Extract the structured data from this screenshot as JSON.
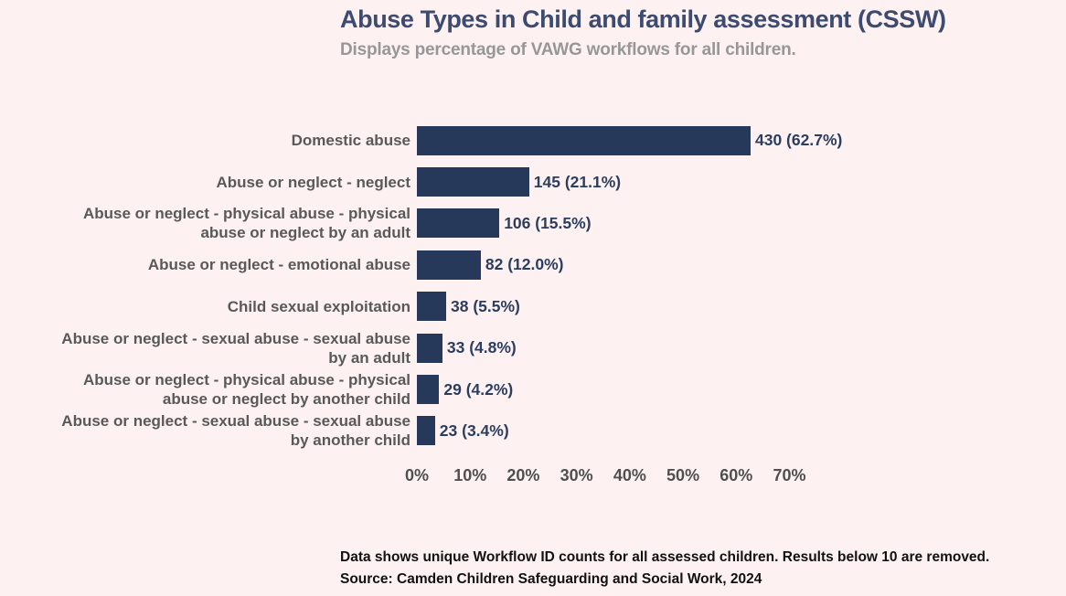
{
  "page": {
    "background_color": "#fdf2f1"
  },
  "header": {
    "title": "Abuse Types in Child and family assessment (CSSW)",
    "subtitle": "Displays percentage of VAWG workflows for all children."
  },
  "chart_data": {
    "type": "bar",
    "orientation": "horizontal",
    "title": "Abuse Types in Child and family assessment (CSSW)",
    "subtitle": "Displays percentage of VAWG workflows for all children.",
    "categories": [
      "Domestic abuse",
      "Abuse or neglect - neglect",
      "Abuse or neglect - physical abuse - physical abuse or neglect by an adult",
      "Abuse or neglect - emotional abuse",
      "Child sexual exploitation",
      "Abuse or neglect - sexual abuse - sexual abuse by an adult",
      "Abuse or neglect - physical abuse - physical abuse or neglect by another child",
      "Abuse or neglect - sexual abuse - sexual abuse by another child"
    ],
    "values": [
      430,
      145,
      106,
      82,
      38,
      33,
      29,
      23
    ],
    "percents": [
      62.7,
      21.1,
      15.5,
      12.0,
      5.5,
      4.8,
      4.2,
      3.4
    ],
    "rows": [
      {
        "label_lines": [
          "Domestic abuse"
        ],
        "count": 430,
        "percent": 62.7,
        "value_label": "430 (62.7%)"
      },
      {
        "label_lines": [
          "Abuse or neglect - neglect"
        ],
        "count": 145,
        "percent": 21.1,
        "value_label": "145 (21.1%)"
      },
      {
        "label_lines": [
          "Abuse or neglect - physical abuse - physical",
          "abuse or neglect by an adult"
        ],
        "count": 106,
        "percent": 15.5,
        "value_label": "106 (15.5%)"
      },
      {
        "label_lines": [
          "Abuse or neglect - emotional abuse"
        ],
        "count": 82,
        "percent": 12.0,
        "value_label": "82 (12.0%)"
      },
      {
        "label_lines": [
          "Child sexual exploitation"
        ],
        "count": 38,
        "percent": 5.5,
        "value_label": "38 (5.5%)"
      },
      {
        "label_lines": [
          "Abuse or neglect - sexual abuse - sexual abuse",
          "by an adult"
        ],
        "count": 33,
        "percent": 4.8,
        "value_label": "33 (4.8%)"
      },
      {
        "label_lines": [
          "Abuse or neglect - physical abuse - physical",
          "abuse or neglect by another child"
        ],
        "count": 29,
        "percent": 4.2,
        "value_label": "29 (4.2%)"
      },
      {
        "label_lines": [
          "Abuse or neglect - sexual abuse - sexual abuse",
          "by another child"
        ],
        "count": 23,
        "percent": 3.4,
        "value_label": "23 (3.4%)"
      }
    ],
    "x_tick_values": [
      0,
      10,
      20,
      30,
      40,
      50,
      60,
      70
    ],
    "x_tick_labels": [
      "0%",
      "10%",
      "20%",
      "30%",
      "40%",
      "50%",
      "60%",
      "70%"
    ],
    "xlim": [
      0,
      75
    ],
    "xlabel": "",
    "ylabel": "",
    "grid": false,
    "legend_position": "none",
    "bar_color": "#27395b"
  },
  "footer": {
    "line1": "Data shows unique Workflow ID counts for all assessed children. Results below 10 are removed.",
    "line2": "Source: Camden Children Safeguarding and Social Work, 2024"
  },
  "colors": {
    "background": "#fdf2f1",
    "bar": "#27395b",
    "title_text": "#3d4b70",
    "subtitle_text": "#979797",
    "category_text": "#595959",
    "value_text": "#2b3e60",
    "tick_text": "#4f4f4f",
    "footer_text": "#111111"
  }
}
